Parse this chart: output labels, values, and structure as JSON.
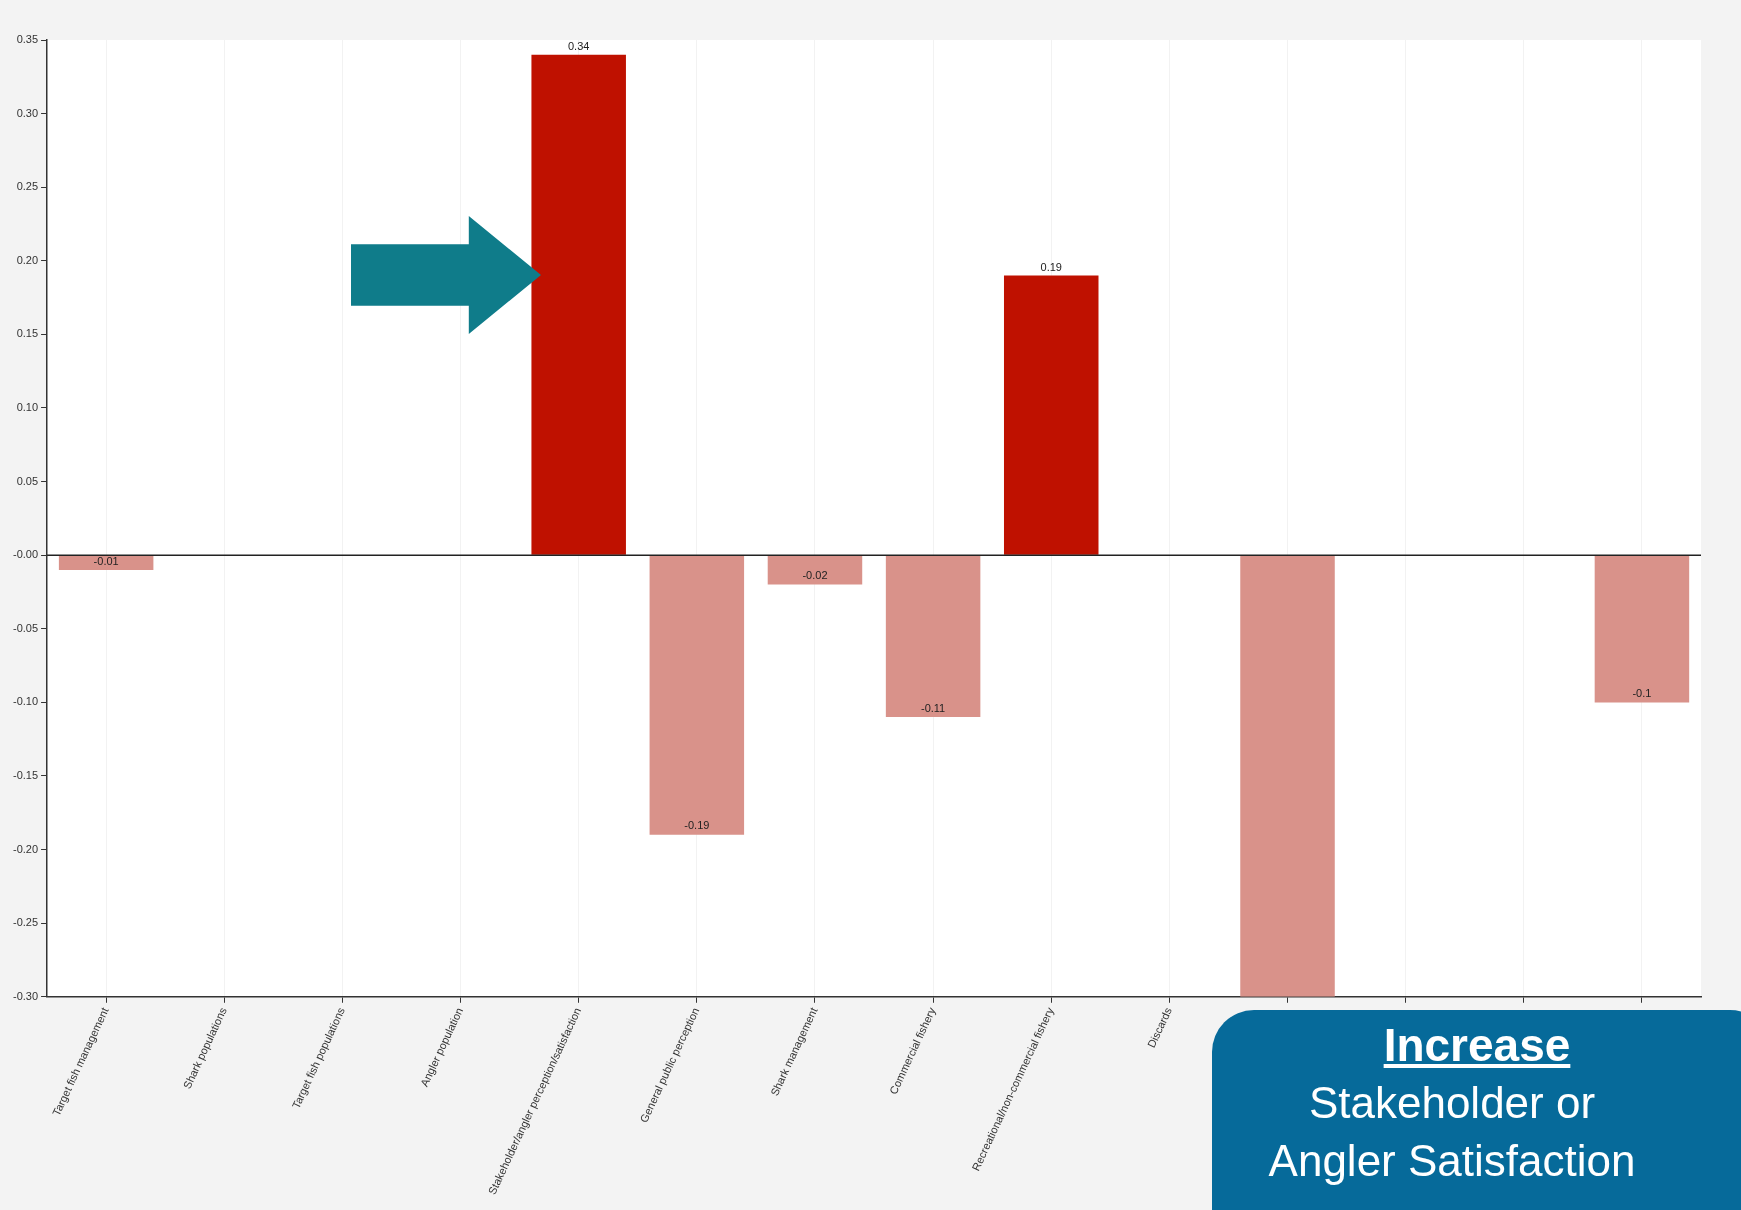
{
  "chart_data": {
    "type": "bar",
    "categories": [
      "Target fish management",
      "Shark populations",
      "Target fish populations",
      "Angler population",
      "Stakeholder/angler perception/satisfaction",
      "General public perception",
      "Shark management",
      "Commercial fishery",
      "Recreational/non-commercial fishery",
      "Discards",
      null,
      null,
      null,
      null
    ],
    "values": [
      -0.01,
      null,
      null,
      null,
      0.34,
      -0.19,
      -0.02,
      -0.11,
      0.19,
      null,
      -0.3,
      null,
      null,
      -0.1
    ],
    "colors": [
      "#d9928a",
      "#d9928a",
      "#d9928a",
      "#d9928a",
      "#bf1100",
      "#d9928a",
      "#d9928a",
      "#d9928a",
      "#bf1100",
      "#d9928a",
      "#d9928a",
      "#d9928a",
      "#d9928a",
      "#d9928a"
    ],
    "value_labels": [
      "-0.01",
      null,
      null,
      null,
      "0.34",
      "-0.19",
      "-0.02",
      "-0.11",
      "0.19",
      null,
      null,
      null,
      null,
      "-0.1"
    ],
    "ylim": [
      -0.3,
      0.35
    ],
    "yticks": [
      {
        "value": -0.3,
        "label": "-0.30"
      },
      {
        "value": -0.25,
        "label": "-0.25"
      },
      {
        "value": -0.2,
        "label": "-0.20"
      },
      {
        "value": -0.15,
        "label": "-0.15"
      },
      {
        "value": -0.1,
        "label": "-0.10"
      },
      {
        "value": -0.05,
        "label": "-0.05"
      },
      {
        "value": 0,
        "label": "-0.00"
      },
      {
        "value": 0.05,
        "label": "0.05"
      },
      {
        "value": 0.1,
        "label": "0.10"
      },
      {
        "value": 0.15,
        "label": "0.15"
      },
      {
        "value": 0.2,
        "label": "0.20"
      },
      {
        "value": 0.25,
        "label": "0.25"
      },
      {
        "value": 0.3,
        "label": "0.30"
      },
      {
        "value": 0.35,
        "label": "0.35"
      }
    ],
    "grid": "x",
    "legend": false,
    "ref_lines": [
      {
        "axis": "y",
        "value": 0,
        "color": "#222222"
      }
    ],
    "annotations": [
      "Increase",
      "Stakeholder or Angler Satisfaction"
    ]
  }
}
